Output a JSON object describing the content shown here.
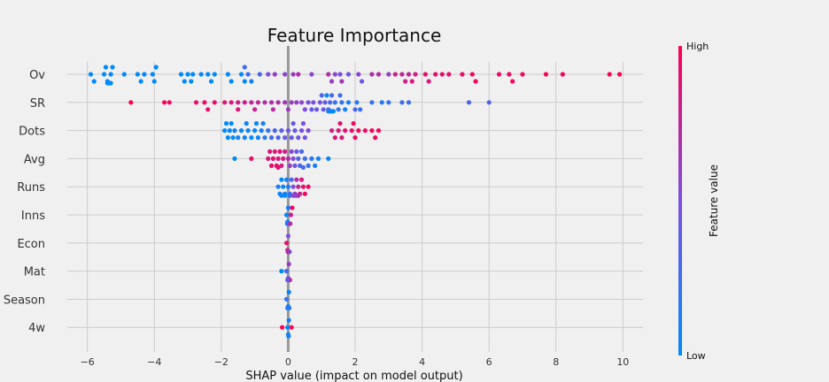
{
  "chart_data": {
    "type": "scatter",
    "title": "Feature Importance",
    "xlabel": "SHAP value (impact on model output)",
    "xlim": [
      -6.6,
      10.6
    ],
    "xticks": [
      "−6",
      "−4",
      "−2",
      "0",
      "2",
      "4",
      "6",
      "8",
      "10"
    ],
    "xtick_values": [
      -6,
      -4,
      -2,
      0,
      2,
      4,
      6,
      8,
      10
    ],
    "features": [
      "Ov",
      "SR",
      "Dots",
      "Avg",
      "Runs",
      "Inns",
      "Econ",
      "Mat",
      "Season",
      "4w"
    ],
    "colorbar": {
      "high_label": "High",
      "low_label": "Low",
      "title": "Feature value",
      "low_color": "#008bfb",
      "mid_color": "#7c4fe0",
      "high_color": "#ff0052"
    },
    "grid": true,
    "series": [
      {
        "feature": "Ov",
        "points": [
          [
            -5.9,
            0.0
          ],
          [
            -5.8,
            0.0
          ],
          [
            -5.5,
            0.0
          ],
          [
            -5.4,
            0.0
          ],
          [
            -5.45,
            0.0
          ],
          [
            -5.3,
            0.0
          ],
          [
            -5.35,
            0.0
          ],
          [
            -5.25,
            0.0
          ],
          [
            -5.4,
            0.0
          ],
          [
            -5.3,
            0.0
          ],
          [
            -4.9,
            0.0
          ],
          [
            -4.5,
            0.0
          ],
          [
            -4.4,
            0.0
          ],
          [
            -4.3,
            0.0
          ],
          [
            -4.05,
            0.0
          ],
          [
            -4.0,
            0.0
          ],
          [
            -3.95,
            0.0
          ],
          [
            -3.2,
            0.0
          ],
          [
            -3.1,
            0.0
          ],
          [
            -3.0,
            0.0
          ],
          [
            -2.9,
            0.0
          ],
          [
            -2.85,
            0.0
          ],
          [
            -2.6,
            0.0
          ],
          [
            -2.4,
            0.0
          ],
          [
            -2.3,
            0.0
          ],
          [
            -2.2,
            0.0
          ],
          [
            -1.8,
            0.0
          ],
          [
            -1.7,
            0.0
          ],
          [
            -1.4,
            0.0
          ],
          [
            -1.3,
            0.0
          ],
          [
            -1.3,
            0.25
          ],
          [
            -1.2,
            0.25
          ],
          [
            -0.6,
            0.5
          ],
          [
            -0.4,
            0.6
          ],
          [
            -0.1,
            0.55
          ],
          [
            0.15,
            0.6
          ],
          [
            0.3,
            0.7
          ],
          [
            0.7,
            0.55
          ],
          [
            1.2,
            0.7
          ],
          [
            1.3,
            0.6
          ],
          [
            1.4,
            0.55
          ],
          [
            1.55,
            0.5
          ],
          [
            1.6,
            0.65
          ],
          [
            1.8,
            0.45
          ],
          [
            2.1,
            0.55
          ],
          [
            2.2,
            0.45
          ],
          [
            2.5,
            0.7
          ],
          [
            2.7,
            0.7
          ],
          [
            3.0,
            0.6
          ],
          [
            3.2,
            0.8
          ],
          [
            3.4,
            0.75
          ],
          [
            3.5,
            0.8
          ],
          [
            3.6,
            0.75
          ],
          [
            3.7,
            0.85
          ],
          [
            3.8,
            0.8
          ],
          [
            4.1,
            0.9
          ],
          [
            4.2,
            0.85
          ],
          [
            4.4,
            0.9
          ],
          [
            4.6,
            0.9
          ],
          [
            4.8,
            0.9
          ],
          [
            5.2,
            0.92
          ],
          [
            5.5,
            0.95
          ],
          [
            5.6,
            0.95
          ],
          [
            6.3,
            0.95
          ],
          [
            6.6,
            0.95
          ],
          [
            6.7,
            0.95
          ],
          [
            7.0,
            0.96
          ],
          [
            7.7,
            0.97
          ],
          [
            8.2,
            0.97
          ],
          [
            9.6,
            0.98
          ],
          [
            9.9,
            0.99
          ],
          [
            -1.1,
            0.1
          ],
          [
            -0.85,
            0.3
          ]
        ]
      },
      {
        "feature": "SR",
        "points": [
          [
            -4.7,
            1.0
          ],
          [
            -3.7,
            0.95
          ],
          [
            -3.55,
            0.95
          ],
          [
            -2.75,
            0.9
          ],
          [
            -2.5,
            0.92
          ],
          [
            -2.4,
            0.9
          ],
          [
            -2.2,
            0.9
          ],
          [
            -1.9,
            0.85
          ],
          [
            -1.7,
            0.85
          ],
          [
            -1.5,
            0.8
          ],
          [
            -1.3,
            0.8
          ],
          [
            -1.1,
            0.75
          ],
          [
            -0.9,
            0.75
          ],
          [
            -0.7,
            0.7
          ],
          [
            -0.5,
            0.7
          ],
          [
            -0.3,
            0.7
          ],
          [
            -0.1,
            0.65
          ],
          [
            0.1,
            0.6
          ],
          [
            0.25,
            0.6
          ],
          [
            0.4,
            0.55
          ],
          [
            0.5,
            0.5
          ],
          [
            0.6,
            0.5
          ],
          [
            0.75,
            0.5
          ],
          [
            0.85,
            0.45
          ],
          [
            0.95,
            0.45
          ],
          [
            1.05,
            0.4
          ],
          [
            1.1,
            0.4
          ],
          [
            1.2,
            0.35
          ],
          [
            1.25,
            0.3
          ],
          [
            1.3,
            0.3
          ],
          [
            1.4,
            0.25
          ],
          [
            1.5,
            0.2
          ],
          [
            1.6,
            0.2
          ],
          [
            1.7,
            0.1
          ],
          [
            1.8,
            0.1
          ],
          [
            2.05,
            0.15
          ],
          [
            2.15,
            0.2
          ],
          [
            2.5,
            0.2
          ],
          [
            2.8,
            0.15
          ],
          [
            3.0,
            0.2
          ],
          [
            3.4,
            0.25
          ],
          [
            3.6,
            0.25
          ],
          [
            5.4,
            0.3
          ],
          [
            6.0,
            0.35
          ],
          [
            1.15,
            0.05
          ],
          [
            1.25,
            0.0
          ],
          [
            1.35,
            0.02
          ],
          [
            1.2,
            0.08
          ],
          [
            1.3,
            0.02
          ],
          [
            2.0,
            0.3
          ],
          [
            -1.5,
            0.85
          ],
          [
            -1.0,
            0.78
          ],
          [
            -0.45,
            0.72
          ],
          [
            0.0,
            0.62
          ],
          [
            0.7,
            0.4
          ],
          [
            1.0,
            0.3
          ],
          [
            1.55,
            0.25
          ]
        ]
      },
      {
        "feature": "Dots",
        "points": [
          [
            -1.9,
            0.0
          ],
          [
            -1.8,
            0.0
          ],
          [
            -1.75,
            0.02
          ],
          [
            -1.7,
            0.0
          ],
          [
            -1.6,
            0.05
          ],
          [
            -1.5,
            0.1
          ],
          [
            -1.4,
            0.05
          ],
          [
            -1.3,
            0.08
          ],
          [
            -1.2,
            0.05
          ],
          [
            -1.1,
            0.0
          ],
          [
            -1.0,
            0.02
          ],
          [
            -0.9,
            0.05
          ],
          [
            -0.8,
            0.1
          ],
          [
            -0.7,
            0.15
          ],
          [
            -0.6,
            0.2
          ],
          [
            -0.5,
            0.25
          ],
          [
            -0.4,
            0.3
          ],
          [
            -0.3,
            0.3
          ],
          [
            -0.2,
            0.35
          ],
          [
            -0.1,
            0.4
          ],
          [
            0.0,
            0.45
          ],
          [
            0.1,
            0.4
          ],
          [
            0.2,
            0.4
          ],
          [
            0.3,
            0.45
          ],
          [
            0.4,
            0.5
          ],
          [
            0.5,
            0.45
          ],
          [
            0.6,
            0.55
          ],
          [
            1.3,
            0.8
          ],
          [
            1.4,
            0.85
          ],
          [
            1.5,
            0.85
          ],
          [
            1.6,
            0.85
          ],
          [
            1.7,
            0.9
          ],
          [
            1.9,
            0.9
          ],
          [
            2.0,
            0.92
          ],
          [
            2.1,
            0.95
          ],
          [
            2.3,
            0.95
          ],
          [
            2.5,
            0.95
          ],
          [
            2.6,
            0.95
          ],
          [
            2.7,
            0.97
          ],
          [
            -1.85,
            0.0
          ],
          [
            -1.65,
            0.0
          ],
          [
            -1.25,
            0.05
          ],
          [
            -0.95,
            0.05
          ],
          [
            -0.75,
            0.1
          ],
          [
            0.45,
            0.5
          ],
          [
            0.15,
            0.42
          ],
          [
            1.55,
            0.88
          ],
          [
            1.95,
            0.92
          ]
        ]
      },
      {
        "feature": "Avg",
        "points": [
          [
            -1.6,
            0.0
          ],
          [
            -1.1,
            0.9
          ],
          [
            -0.6,
            0.85
          ],
          [
            -0.5,
            0.9
          ],
          [
            -0.45,
            0.9
          ],
          [
            -0.4,
            0.85
          ],
          [
            -0.35,
            0.9
          ],
          [
            -0.3,
            0.85
          ],
          [
            -0.25,
            0.9
          ],
          [
            -0.2,
            0.8
          ],
          [
            -0.15,
            0.85
          ],
          [
            -0.1,
            0.8
          ],
          [
            0.0,
            0.7
          ],
          [
            0.05,
            0.6
          ],
          [
            0.1,
            0.55
          ],
          [
            0.15,
            0.5
          ],
          [
            0.2,
            0.45
          ],
          [
            0.25,
            0.4
          ],
          [
            0.3,
            0.35
          ],
          [
            0.35,
            0.3
          ],
          [
            0.4,
            0.3
          ],
          [
            0.5,
            0.25
          ],
          [
            0.6,
            0.2
          ],
          [
            0.7,
            0.15
          ],
          [
            0.8,
            0.1
          ],
          [
            0.9,
            0.1
          ],
          [
            1.2,
            0.05
          ],
          [
            -0.55,
            0.88
          ],
          [
            -0.3,
            0.9
          ],
          [
            0.45,
            0.28
          ]
        ]
      },
      {
        "feature": "Runs",
        "points": [
          [
            -0.3,
            0.1
          ],
          [
            -0.25,
            0.05
          ],
          [
            -0.2,
            0.0
          ],
          [
            -0.15,
            0.05
          ],
          [
            -0.1,
            0.1
          ],
          [
            -0.05,
            0.1
          ],
          [
            0.0,
            0.15
          ],
          [
            0.05,
            0.2
          ],
          [
            0.1,
            0.3
          ],
          [
            0.15,
            0.5
          ],
          [
            0.2,
            0.6
          ],
          [
            0.25,
            0.7
          ],
          [
            0.3,
            0.75
          ],
          [
            0.35,
            0.8
          ],
          [
            0.4,
            0.85
          ],
          [
            0.45,
            0.9
          ],
          [
            0.5,
            0.95
          ],
          [
            0.6,
            0.95
          ],
          [
            -0.2,
            0.05
          ],
          [
            -0.1,
            0.0
          ],
          [
            0.05,
            0.2
          ],
          [
            0.15,
            0.6
          ],
          [
            0.25,
            0.75
          ],
          [
            0.3,
            0.7
          ],
          [
            0.2,
            0.55
          ]
        ]
      },
      {
        "feature": "Inns",
        "points": [
          [
            -0.05,
            0.0
          ],
          [
            -0.02,
            0.05
          ],
          [
            0.0,
            0.1
          ],
          [
            0.02,
            0.2
          ],
          [
            0.05,
            0.5
          ],
          [
            0.08,
            0.8
          ],
          [
            0.12,
            0.95
          ],
          [
            -0.03,
            0.1
          ],
          [
            0.01,
            0.3
          ],
          [
            0.06,
            0.7
          ]
        ]
      },
      {
        "feature": "Econ",
        "points": [
          [
            -0.05,
            0.9
          ],
          [
            -0.02,
            0.8
          ],
          [
            0.0,
            0.5
          ],
          [
            0.02,
            0.3
          ],
          [
            0.04,
            0.2
          ],
          [
            0.01,
            0.6
          ],
          [
            -0.01,
            0.7
          ]
        ]
      },
      {
        "feature": "Mat",
        "points": [
          [
            -0.2,
            0.0
          ],
          [
            -0.05,
            0.3
          ],
          [
            0.0,
            0.5
          ],
          [
            0.02,
            0.6
          ],
          [
            0.05,
            0.9
          ],
          [
            0.03,
            0.7
          ],
          [
            -0.02,
            0.4
          ]
        ]
      },
      {
        "feature": "Season",
        "points": [
          [
            -0.05,
            0.2
          ],
          [
            0.0,
            0.1
          ],
          [
            0.02,
            0.05
          ],
          [
            0.03,
            0.1
          ],
          [
            -0.02,
            0.15
          ]
        ]
      },
      {
        "feature": "4w",
        "points": [
          [
            -0.18,
            1.0
          ],
          [
            -0.02,
            0.0
          ],
          [
            0.0,
            0.05
          ],
          [
            0.02,
            0.1
          ],
          [
            0.1,
            0.95
          ],
          [
            0.01,
            0.1
          ]
        ]
      }
    ]
  }
}
